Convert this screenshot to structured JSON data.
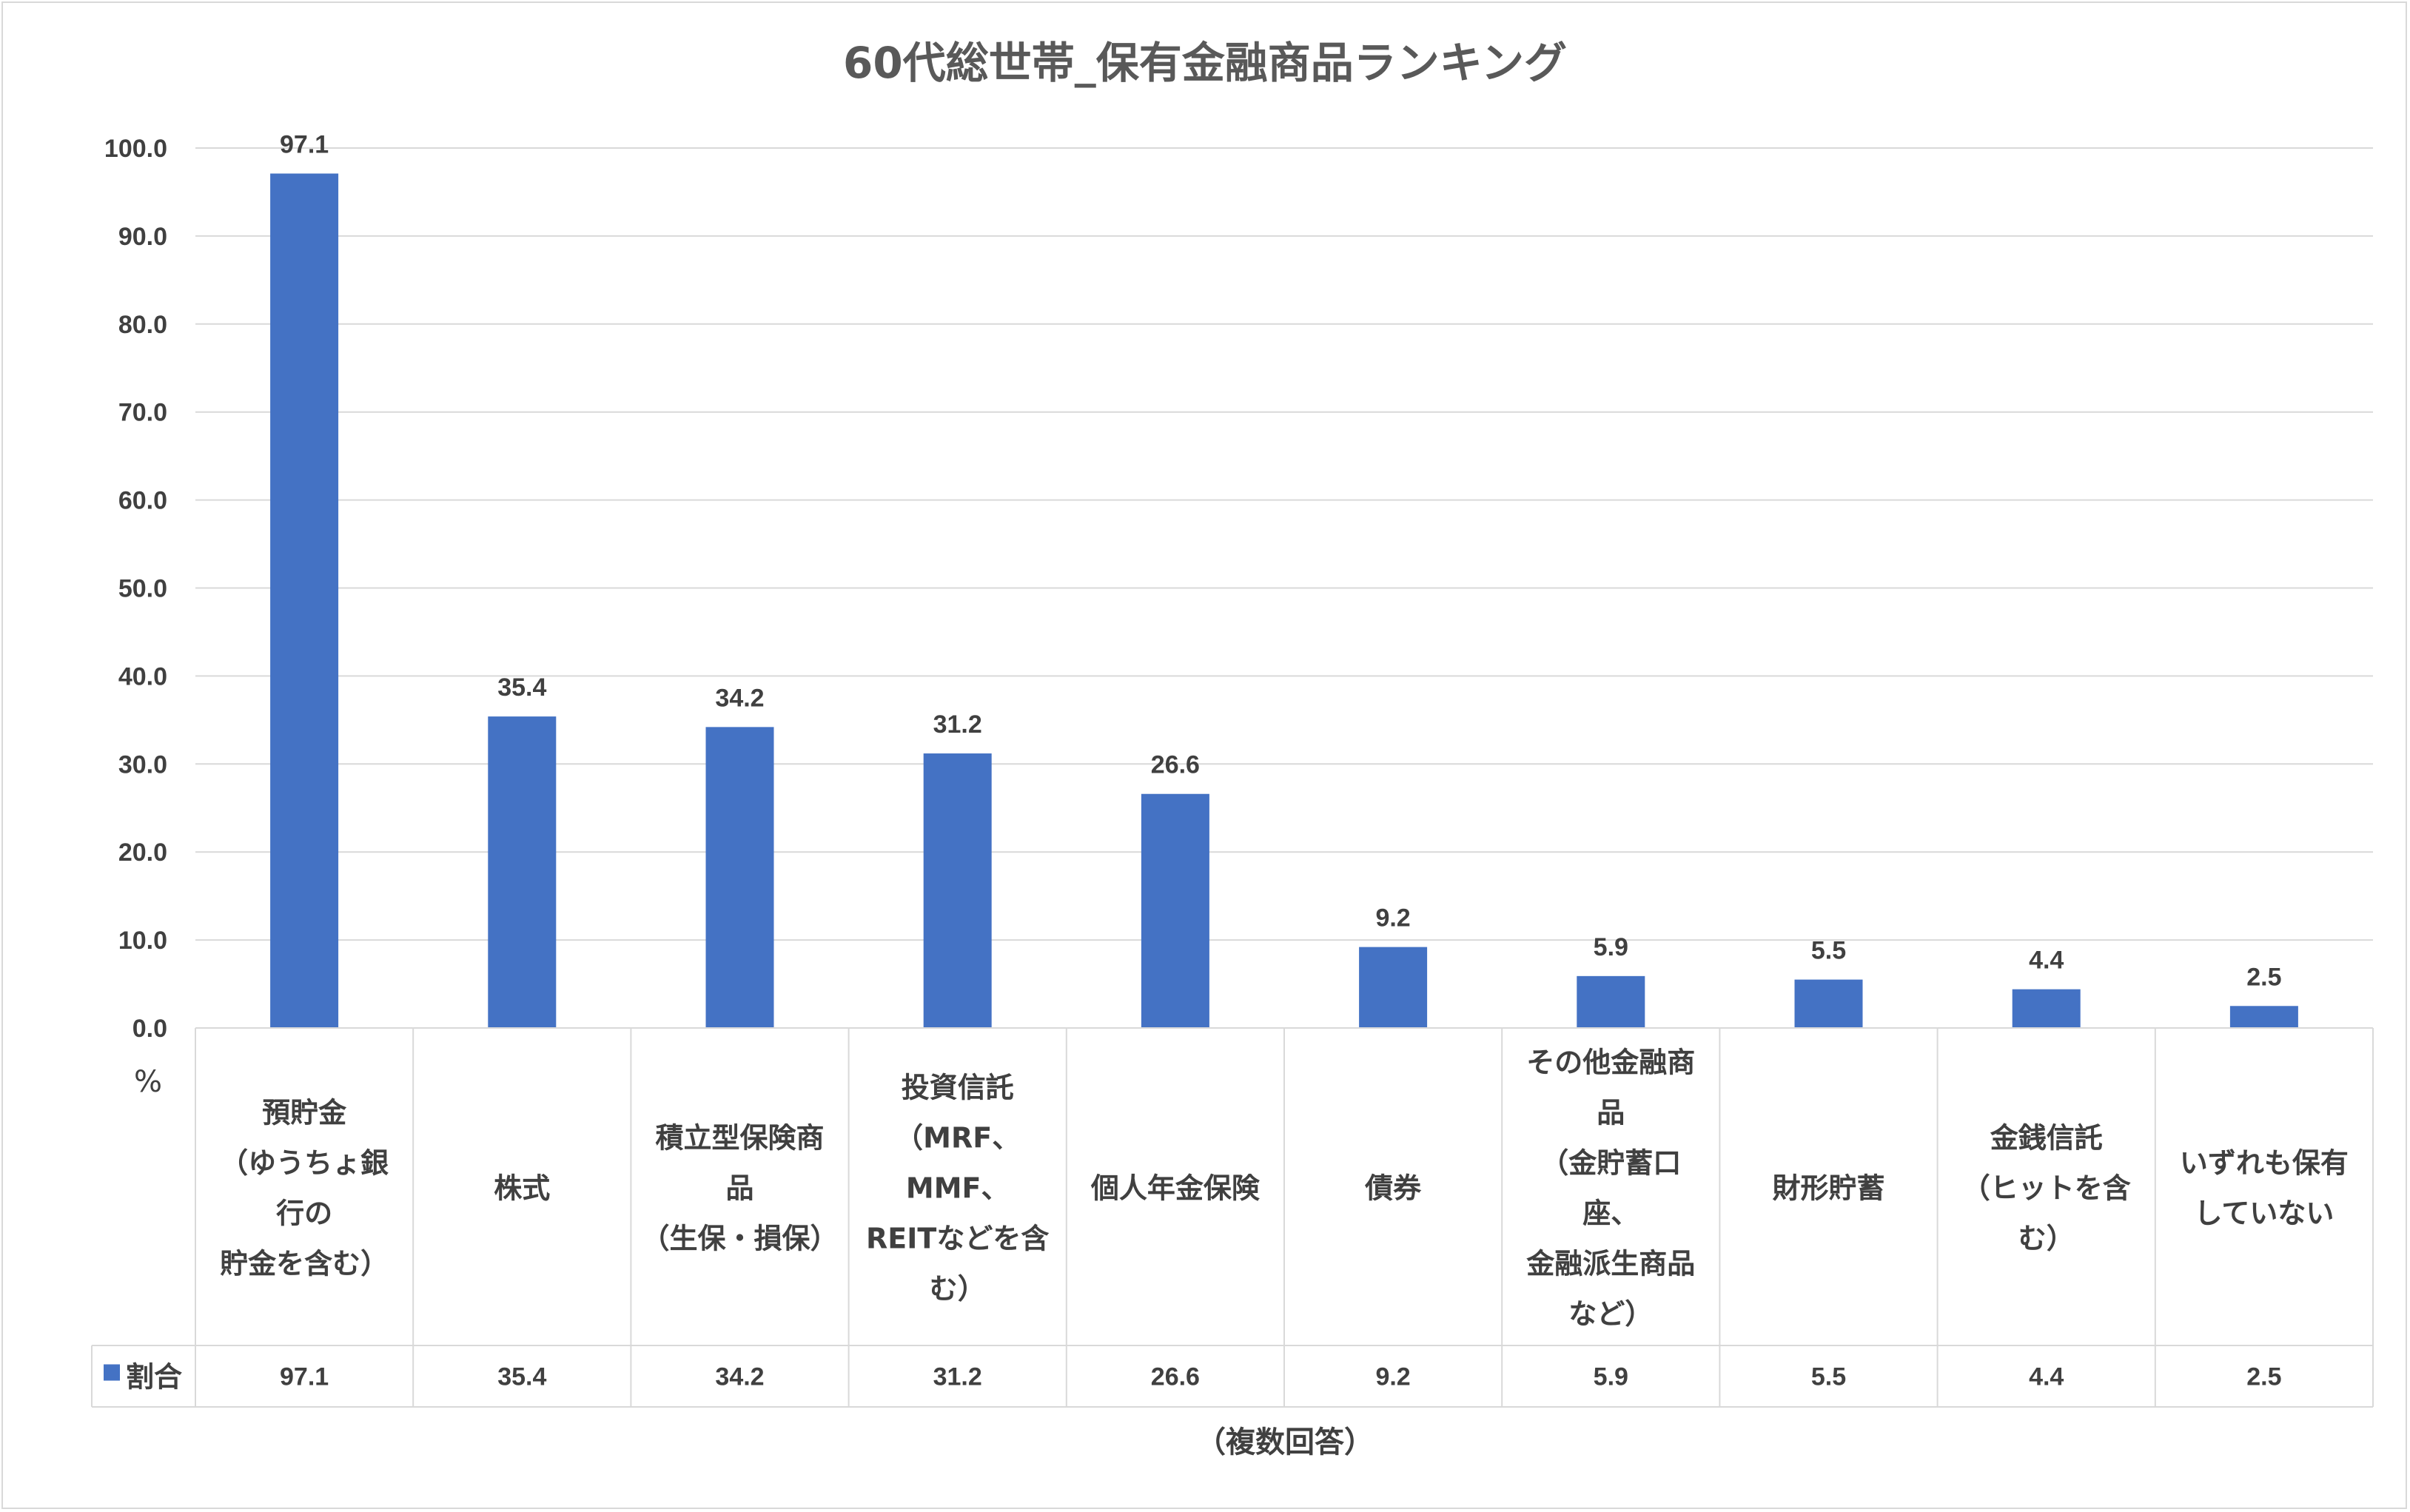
{
  "chart_data": {
    "type": "bar",
    "title": "60代総世帯_保有金融商品ランキング",
    "xlabel": "（複数回答）",
    "ylabel": "%",
    "ylim": [
      0,
      100
    ],
    "yticks": [
      "0.0",
      "10.0",
      "20.0",
      "30.0",
      "40.0",
      "50.0",
      "60.0",
      "70.0",
      "80.0",
      "90.0",
      "100.0"
    ],
    "grid": true,
    "legend_position": "left of data table",
    "bar_color": "#4472c4",
    "categories": [
      [
        "預貯金",
        "（ゆうちょ銀",
        "行の",
        "貯金を含む）"
      ],
      [
        "株式"
      ],
      [
        "積立型保険商",
        "品",
        "（生保・損保）"
      ],
      [
        "投資信託",
        "（MRF、",
        "MMF、",
        "REITなどを含",
        "む）"
      ],
      [
        "個人年金保険"
      ],
      [
        "債券"
      ],
      [
        "その他金融商",
        "品",
        "（金貯蓄口",
        "座、",
        "金融派生商品",
        "など）"
      ],
      [
        "財形貯蓄"
      ],
      [
        "金銭信託",
        "（ヒットを含",
        "む）"
      ],
      [
        "いずれも保有",
        "していない"
      ]
    ],
    "series": [
      {
        "name": "割合",
        "values": [
          97.1,
          35.4,
          34.2,
          31.2,
          26.6,
          9.2,
          5.9,
          5.5,
          4.4,
          2.5
        ],
        "labels": [
          "97.1",
          "35.4",
          "34.2",
          "31.2",
          "26.6",
          "9.2",
          "5.9",
          "5.5",
          "4.4",
          "2.5"
        ]
      }
    ]
  }
}
